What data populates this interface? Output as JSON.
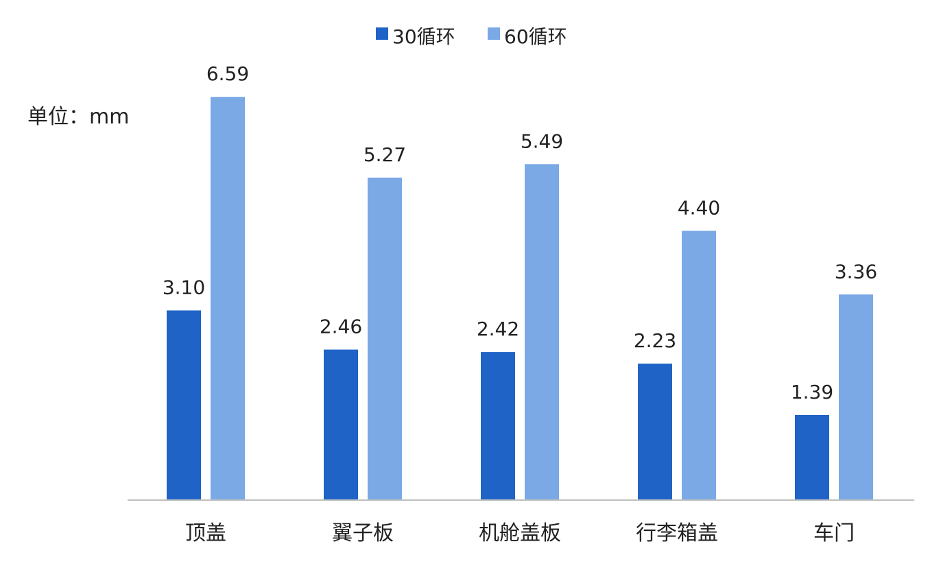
{
  "chart_data": {
    "type": "bar",
    "unit_label": "单位：mm",
    "categories": [
      "顶盖",
      "翼子板",
      "机舱盖板",
      "行李箱盖",
      "车门"
    ],
    "series": [
      {
        "name": "30循环",
        "color": "#1f63c6",
        "values": [
          3.1,
          2.46,
          2.42,
          2.23,
          1.39
        ],
        "labels": [
          "3.10",
          "2.46",
          "2.42",
          "2.23",
          "1.39"
        ]
      },
      {
        "name": "60循环",
        "color": "#7aa9e6",
        "values": [
          6.59,
          5.27,
          5.49,
          4.4,
          3.36
        ],
        "labels": [
          "6.59",
          "5.27",
          "5.49",
          "4.40",
          "3.36"
        ]
      }
    ],
    "ylim": [
      0,
      7.5
    ],
    "legend_position": "top-center",
    "grid": false,
    "axis_line_color": "#bfbfbf",
    "text_color": "#222222"
  }
}
